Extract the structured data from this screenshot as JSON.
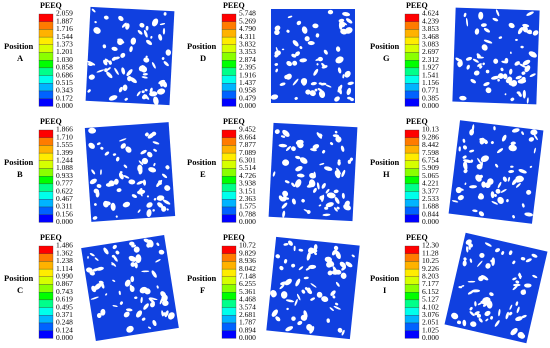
{
  "panels": [
    {
      "position": "Position",
      "letter": "A",
      "legend_title": "PEEQ",
      "legend_labels": [
        "2.059",
        "1.887",
        "1.716",
        "1.544",
        "1.373",
        "1.201",
        "1.030",
        "0.858",
        "0.686",
        "0.515",
        "0.343",
        "0.172",
        "0.000"
      ]
    },
    {
      "position": "Position",
      "letter": "B",
      "legend_title": "PEEQ",
      "legend_labels": [
        "1.866",
        "1.710",
        "1.555",
        "1.399",
        "1.244",
        "1.088",
        "0.933",
        "0.777",
        "0.622",
        "0.467",
        "0.311",
        "0.156",
        "0.000"
      ]
    },
    {
      "position": "Position",
      "letter": "C",
      "legend_title": "PEEQ",
      "legend_labels": [
        "1.486",
        "1.362",
        "1.238",
        "1.114",
        "0.990",
        "0.867",
        "0.743",
        "0.619",
        "0.495",
        "0.371",
        "0.248",
        "0.124",
        "0.000"
      ]
    },
    {
      "position": "Position",
      "letter": "D",
      "legend_title": "PEEQ",
      "legend_labels": [
        "5.748",
        "5.269",
        "4.790",
        "4.311",
        "3.832",
        "3.353",
        "2.874",
        "2.395",
        "1.916",
        "1.437",
        "0.958",
        "0.479",
        "0.000"
      ]
    },
    {
      "position": "Position",
      "letter": "E",
      "legend_title": "PEEQ",
      "legend_labels": [
        "9.452",
        "8.664",
        "7.877",
        "7.089",
        "6.301",
        "5.514",
        "4.726",
        "3.938",
        "3.151",
        "2.363",
        "1.575",
        "0.788",
        "0.000"
      ]
    },
    {
      "position": "Position",
      "letter": "F",
      "legend_title": "PEEQ",
      "legend_labels": [
        "10.72",
        "9.829",
        "8.936",
        "8.042",
        "7.148",
        "6.255",
        "5.361",
        "4.468",
        "3.574",
        "2.681",
        "1.787",
        "0.894",
        "0.000"
      ]
    },
    {
      "position": "Position",
      "letter": "G",
      "legend_title": "PEEQ",
      "legend_labels": [
        "4.624",
        "4.239",
        "3.853",
        "3.468",
        "3.083",
        "2.697",
        "2.312",
        "1.927",
        "1.541",
        "1.156",
        "0.771",
        "0.385",
        "0.000"
      ]
    },
    {
      "position": "Position",
      "letter": "H",
      "legend_title": "PEEQ",
      "legend_labels": [
        "10.13",
        "9.286",
        "8.442",
        "7.598",
        "6.754",
        "5.909",
        "5.065",
        "4.221",
        "3.377",
        "2.533",
        "1.688",
        "0.844",
        "0.000"
      ]
    },
    {
      "position": "Position",
      "letter": "I",
      "legend_title": "PEEQ",
      "legend_labels": [
        "12.30",
        "11.28",
        "10.25",
        "9.226",
        "8.203",
        "7.177",
        "6.152",
        "5.127",
        "4.102",
        "3.076",
        "2.051",
        "1.025",
        "0.000"
      ]
    }
  ]
}
